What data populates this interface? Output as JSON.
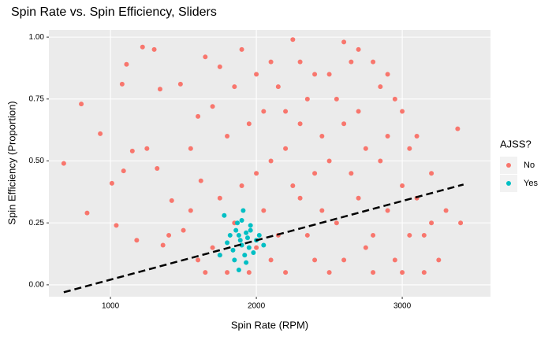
{
  "chart_data": {
    "type": "scatter",
    "title": "Spin Rate vs. Spin Efficiency, Sliders",
    "x_label": "Spin Rate (RPM)",
    "y_label": "Spin Efficiency (Proportion)",
    "legend_title": "AJSS?",
    "legend_position": "right",
    "grid": true,
    "xlim": [
      578,
      3605
    ],
    "ylim": [
      -0.048,
      1.029
    ],
    "xticks": [
      1000,
      2000,
      3000
    ],
    "yticks": [
      {
        "value": 0,
        "label": "0.00"
      },
      {
        "value": 0.25,
        "label": "0.25"
      },
      {
        "value": 0.5,
        "label": "0.50"
      },
      {
        "value": 0.75,
        "label": "0.75"
      },
      {
        "value": 1,
        "label": "1.00"
      }
    ],
    "series": [
      {
        "name": "No",
        "color": "#F8766D",
        "x": [
          680,
          800,
          840,
          930,
          1010,
          1040,
          1080,
          1110,
          1090,
          1150,
          1180,
          1220,
          1250,
          1300,
          1320,
          1340,
          1360,
          1400,
          1420,
          1480,
          1550,
          1600,
          1620,
          1650,
          1700,
          1750,
          1500,
          1550,
          1600,
          1650,
          1700,
          1750,
          1800,
          1850,
          1900,
          1950,
          2000,
          2050,
          2100,
          2150,
          2200,
          2250,
          2300,
          2350,
          2400,
          2450,
          2500,
          2550,
          2600,
          2650,
          2700,
          2750,
          2800,
          2850,
          2900,
          2950,
          3000,
          3050,
          3100,
          3150,
          3200,
          3250,
          3300,
          3380,
          3400,
          1850,
          1900,
          1950,
          2000,
          2050,
          2100,
          2150,
          2200,
          2250,
          2300,
          2350,
          2400,
          2450,
          2500,
          2550,
          2600,
          2650,
          2700,
          2750,
          2800,
          2850,
          2900,
          2950,
          3000,
          3050,
          3100,
          3150,
          3200,
          2000,
          2200,
          2400,
          2600,
          2800,
          3000,
          1800,
          1750,
          2100,
          2300,
          2500,
          2700,
          2900
        ],
        "values": [
          0.49,
          0.73,
          0.29,
          0.61,
          0.41,
          0.24,
          0.81,
          0.89,
          0.46,
          0.54,
          0.18,
          0.96,
          0.55,
          0.95,
          0.47,
          0.79,
          0.16,
          0.2,
          0.34,
          0.81,
          0.55,
          0.68,
          0.42,
          0.92,
          0.72,
          0.88,
          0.22,
          0.3,
          0.1,
          0.05,
          0.15,
          0.35,
          0.6,
          0.8,
          0.95,
          0.05,
          0.45,
          0.7,
          0.9,
          0.2,
          0.55,
          0.99,
          0.35,
          0.75,
          0.1,
          0.6,
          0.85,
          0.25,
          0.98,
          0.45,
          0.7,
          0.15,
          0.9,
          0.5,
          0.3,
          0.75,
          0.05,
          0.55,
          0.35,
          0.2,
          0.45,
          0.1,
          0.3,
          0.63,
          0.25,
          0.25,
          0.4,
          0.65,
          0.15,
          0.3,
          0.5,
          0.8,
          0.05,
          0.4,
          0.65,
          0.2,
          0.85,
          0.3,
          0.5,
          0.75,
          0.1,
          0.9,
          0.35,
          0.55,
          0.2,
          0.8,
          0.6,
          0.1,
          0.4,
          0.2,
          0.6,
          0.05,
          0.25,
          0.85,
          0.7,
          0.45,
          0.65,
          0.05,
          0.7,
          0.05,
          0.12,
          0.1,
          0.9,
          0.05,
          0.95,
          0.85
        ]
      },
      {
        "name": "Yes",
        "color": "#00BFC4",
        "x": [
          1750,
          1780,
          1800,
          1820,
          1840,
          1860,
          1870,
          1880,
          1890,
          1900,
          1910,
          1920,
          1930,
          1940,
          1950,
          1960,
          1980,
          2000,
          2020,
          2050,
          1850,
          1900,
          1930,
          1880,
          1960
        ],
        "values": [
          0.12,
          0.28,
          0.17,
          0.2,
          0.14,
          0.22,
          0.25,
          0.06,
          0.18,
          0.16,
          0.3,
          0.12,
          0.21,
          0.19,
          0.15,
          0.24,
          0.13,
          0.18,
          0.2,
          0.16,
          0.1,
          0.26,
          0.09,
          0.2,
          0.22
        ]
      }
    ],
    "trend": {
      "x": [
        680,
        3420
      ],
      "values": [
        -0.03,
        0.405
      ],
      "color": "#000000"
    }
  }
}
